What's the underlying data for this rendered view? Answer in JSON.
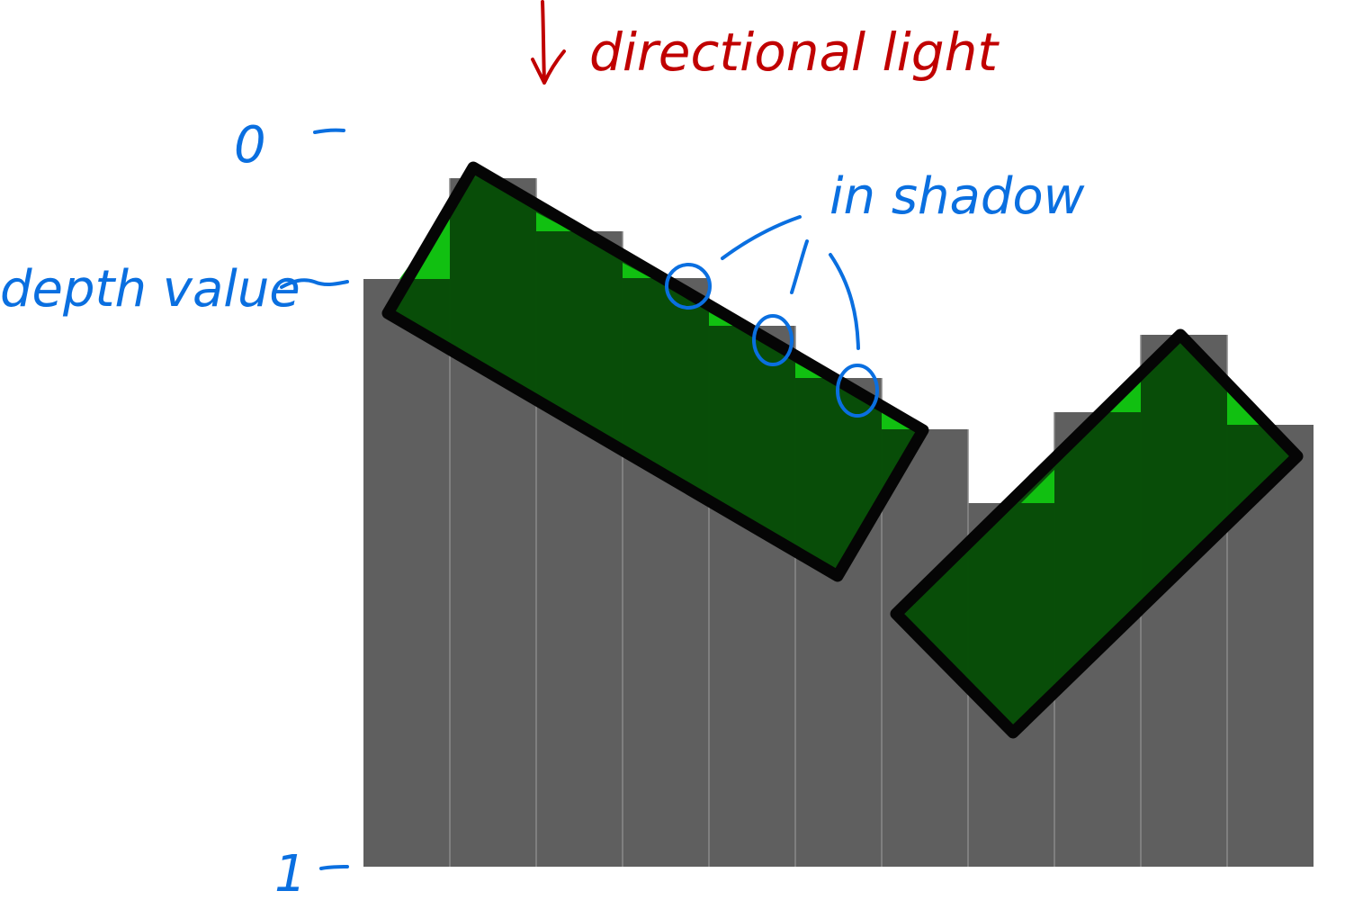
{
  "labels": {
    "directional_light": "directional light",
    "in_shadow": "in shadow",
    "depth_value": "depth value",
    "depth_zero": "0",
    "depth_one": "1"
  },
  "diagram": {
    "depth_range": [
      0,
      1
    ],
    "columns": 11,
    "colors": {
      "bars": "#5f5f5f",
      "bar_lines": "#8a8a8a",
      "surface_in_shadow": "#064d06",
      "surface_lit": "#11c011",
      "outline": "#050505",
      "annotation_blue": "#0a6fe0",
      "annotation_red": "#c00000"
    }
  }
}
